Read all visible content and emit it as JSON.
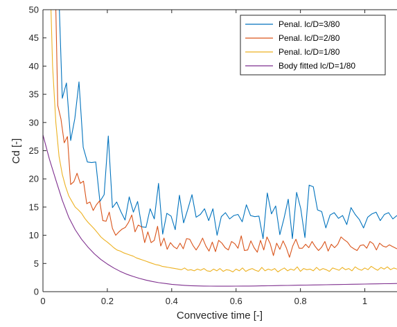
{
  "chart_data": {
    "type": "line",
    "title": "",
    "xlabel": "Convective time [-]",
    "ylabel": "Cd [-]",
    "xlim": [
      0,
      1.1
    ],
    "ylim": [
      0,
      50
    ],
    "xticks": [
      0,
      0.2,
      0.4,
      0.6,
      0.8,
      1
    ],
    "xtick_labels": [
      "0",
      "0.2",
      "0.4",
      "0.6",
      "0.8",
      "1"
    ],
    "yticks": [
      0,
      5,
      10,
      15,
      20,
      25,
      30,
      35,
      40,
      45,
      50
    ],
    "ytick_labels": [
      "0",
      "5",
      "10",
      "15",
      "20",
      "25",
      "30",
      "35",
      "40",
      "45",
      "50"
    ],
    "grid": false,
    "legend_position": "top-right",
    "series": [
      {
        "name": "Penal. lc/D=3/80",
        "color": "#0072BD",
        "x": [
          0.049,
          0.051,
          0.06,
          0.073,
          0.086,
          0.099,
          0.112,
          0.125,
          0.138,
          0.151,
          0.164,
          0.177,
          0.19,
          0.203,
          0.216,
          0.229,
          0.242,
          0.255,
          0.268,
          0.281,
          0.294,
          0.307,
          0.32,
          0.333,
          0.346,
          0.359,
          0.372,
          0.385,
          0.398,
          0.411,
          0.424,
          0.437,
          0.45,
          0.463,
          0.476,
          0.489,
          0.502,
          0.515,
          0.528,
          0.541,
          0.554,
          0.567,
          0.58,
          0.593,
          0.606,
          0.619,
          0.632,
          0.645,
          0.658,
          0.671,
          0.684,
          0.697,
          0.71,
          0.723,
          0.736,
          0.749,
          0.762,
          0.775,
          0.788,
          0.801,
          0.814,
          0.827,
          0.84,
          0.853,
          0.866,
          0.879,
          0.892,
          0.905,
          0.918,
          0.931,
          0.944,
          0.957,
          0.97,
          0.983,
          0.996,
          1.009,
          1.022,
          1.035,
          1.048,
          1.061,
          1.074,
          1.087,
          1.1
        ],
        "values": [
          50,
          50,
          34.3,
          37.0,
          26.8,
          30.7,
          37.2,
          25.6,
          23.0,
          22.9,
          23.0,
          16.0,
          17.2,
          27.6,
          14.9,
          15.9,
          14.2,
          12.7,
          16.8,
          14.1,
          16.0,
          11.5,
          11.4,
          14.7,
          12.9,
          19.2,
          10.2,
          13.9,
          13.4,
          11.0,
          17.1,
          12.2,
          14.6,
          17.2,
          13.2,
          13.7,
          14.7,
          12.6,
          14.7,
          10.0,
          13.3,
          14.0,
          12.9,
          13.5,
          13.7,
          12.4,
          15.4,
          13.5,
          13.3,
          13.4,
          9.4,
          17.5,
          13.8,
          15.2,
          10.1,
          13.0,
          16.4,
          9.4,
          17.6,
          14.7,
          9.6,
          18.9,
          18.6,
          14.5,
          14.2,
          11.3,
          13.6,
          14.0,
          13.0,
          13.5,
          11.9,
          14.9,
          13.7,
          12.8,
          11.3,
          13.2,
          13.8,
          14.1,
          12.6,
          13.7,
          14.0,
          12.9,
          13.5
        ]
      },
      {
        "name": "Penal. lc/D=2/80",
        "color": "#D95319",
        "x": [
          0.04,
          0.046,
          0.056,
          0.066,
          0.076,
          0.086,
          0.096,
          0.106,
          0.116,
          0.126,
          0.136,
          0.146,
          0.156,
          0.166,
          0.176,
          0.186,
          0.196,
          0.206,
          0.216,
          0.226,
          0.236,
          0.246,
          0.256,
          0.266,
          0.276,
          0.286,
          0.296,
          0.306,
          0.316,
          0.326,
          0.336,
          0.346,
          0.356,
          0.366,
          0.376,
          0.386,
          0.396,
          0.406,
          0.416,
          0.426,
          0.436,
          0.446,
          0.456,
          0.466,
          0.476,
          0.486,
          0.496,
          0.506,
          0.516,
          0.526,
          0.536,
          0.546,
          0.556,
          0.566,
          0.576,
          0.586,
          0.596,
          0.606,
          0.616,
          0.626,
          0.636,
          0.646,
          0.656,
          0.666,
          0.676,
          0.686,
          0.696,
          0.706,
          0.716,
          0.726,
          0.736,
          0.746,
          0.756,
          0.766,
          0.776,
          0.786,
          0.796,
          0.806,
          0.816,
          0.826,
          0.836,
          0.846,
          0.856,
          0.866,
          0.876,
          0.886,
          0.896,
          0.906,
          0.916,
          0.926,
          0.936,
          0.946,
          0.956,
          0.966,
          0.976,
          0.986,
          0.996,
          1.006,
          1.016,
          1.026,
          1.036,
          1.046,
          1.056,
          1.066,
          1.076,
          1.086,
          1.1
        ],
        "values": [
          50,
          33.0,
          30.6,
          26.4,
          27.5,
          19.0,
          19.5,
          21.0,
          19.2,
          19.6,
          15.6,
          15.9,
          14.4,
          15.4,
          16.1,
          12.6,
          12.5,
          14.1,
          11.2,
          10.0,
          10.6,
          11.1,
          11.4,
          12.3,
          13.6,
          10.6,
          11.8,
          11.5,
          8.7,
          10.6,
          8.7,
          9.1,
          11.6,
          8.1,
          9.5,
          7.5,
          8.7,
          8.0,
          7.6,
          8.6,
          7.6,
          9.4,
          9.3,
          8.2,
          7.4,
          8.3,
          9.5,
          8.1,
          7.2,
          8.8,
          7.1,
          9.1,
          8.6,
          7.8,
          7.4,
          8.9,
          8.5,
          7.7,
          9.9,
          7.3,
          7.4,
          9.0,
          7.8,
          7.0,
          9.1,
          7.4,
          9.7,
          8.5,
          6.4,
          8.6,
          7.5,
          9.0,
          7.8,
          6.1,
          8.1,
          9.3,
          7.7,
          7.7,
          8.4,
          7.8,
          8.9,
          8.0,
          7.3,
          7.9,
          8.9,
          7.2,
          8.4,
          7.8,
          8.4,
          9.7,
          9.2,
          8.8,
          8.0,
          7.6,
          7.3,
          8.2,
          8.3,
          7.7,
          8.9,
          8.5,
          7.4,
          8.6,
          8.1,
          7.9,
          8.3,
          8.0,
          7.6
        ]
      },
      {
        "name": "Penal. lc/D=1/80",
        "color": "#EDB120",
        "x": [
          0.025,
          0.03,
          0.04,
          0.05,
          0.06,
          0.07,
          0.08,
          0.09,
          0.1,
          0.11,
          0.12,
          0.13,
          0.14,
          0.15,
          0.16,
          0.17,
          0.18,
          0.19,
          0.2,
          0.21,
          0.22,
          0.23,
          0.24,
          0.25,
          0.26,
          0.27,
          0.28,
          0.29,
          0.3,
          0.31,
          0.32,
          0.33,
          0.34,
          0.35,
          0.36,
          0.37,
          0.38,
          0.39,
          0.4,
          0.41,
          0.42,
          0.43,
          0.44,
          0.45,
          0.46,
          0.47,
          0.48,
          0.49,
          0.5,
          0.51,
          0.52,
          0.53,
          0.54,
          0.55,
          0.56,
          0.57,
          0.58,
          0.59,
          0.6,
          0.61,
          0.62,
          0.63,
          0.64,
          0.65,
          0.66,
          0.67,
          0.68,
          0.69,
          0.7,
          0.71,
          0.72,
          0.73,
          0.74,
          0.75,
          0.76,
          0.77,
          0.78,
          0.79,
          0.8,
          0.81,
          0.82,
          0.83,
          0.84,
          0.85,
          0.86,
          0.87,
          0.88,
          0.89,
          0.9,
          0.91,
          0.92,
          0.93,
          0.94,
          0.95,
          0.96,
          0.97,
          0.98,
          0.99,
          1.0,
          1.01,
          1.02,
          1.03,
          1.04,
          1.05,
          1.06,
          1.07,
          1.08,
          1.09,
          1.1
        ],
        "values": [
          50,
          40.0,
          30.0,
          24.0,
          20.8,
          18.7,
          17.0,
          16.0,
          15.0,
          14.5,
          13.9,
          13.0,
          12.3,
          11.7,
          11.1,
          10.4,
          9.7,
          9.2,
          8.8,
          8.3,
          7.8,
          7.4,
          7.2,
          6.9,
          6.7,
          6.5,
          6.3,
          6.0,
          5.8,
          5.6,
          5.4,
          5.2,
          5.0,
          4.8,
          4.7,
          4.5,
          4.4,
          4.3,
          4.2,
          4.1,
          4.0,
          3.9,
          4.2,
          3.8,
          3.9,
          3.7,
          4.0,
          3.8,
          4.1,
          3.7,
          3.6,
          4.0,
          3.7,
          4.1,
          3.6,
          3.9,
          3.8,
          3.5,
          4.0,
          3.7,
          4.2,
          3.6,
          3.9,
          4.1,
          3.8,
          3.6,
          4.3,
          3.7,
          4.0,
          3.8,
          4.1,
          3.5,
          3.9,
          4.2,
          3.7,
          4.0,
          3.8,
          4.4,
          3.6,
          4.1,
          3.9,
          4.0,
          3.7,
          4.3,
          3.8,
          4.1,
          3.9,
          3.6,
          4.2,
          4.0,
          3.8,
          4.3,
          3.9,
          4.1,
          3.7,
          4.4,
          4.0,
          3.8,
          4.2,
          3.9,
          4.5,
          4.1,
          3.8,
          4.3,
          4.0,
          4.4,
          3.9,
          4.2,
          4.0
        ]
      },
      {
        "name": "Body fitted lc/D=1/80",
        "color": "#7E2F8E",
        "x": [
          0,
          0.02,
          0.04,
          0.06,
          0.08,
          0.1,
          0.12,
          0.14,
          0.16,
          0.18,
          0.2,
          0.22,
          0.24,
          0.26,
          0.28,
          0.3,
          0.32,
          0.34,
          0.36,
          0.38,
          0.4,
          0.42,
          0.44,
          0.46,
          0.48,
          0.5,
          0.52,
          0.54,
          0.56,
          0.58,
          0.6,
          0.62,
          0.64,
          0.66,
          0.68,
          0.7,
          0.72,
          0.74,
          0.76,
          0.78,
          0.8,
          0.82,
          0.84,
          0.86,
          0.88,
          0.9,
          0.92,
          0.94,
          0.96,
          0.98,
          1.0,
          1.02,
          1.04,
          1.06,
          1.08,
          1.1
        ],
        "values": [
          27.8,
          23.5,
          19.8,
          16.2,
          13.2,
          11.0,
          9.3,
          7.9,
          6.7,
          5.7,
          4.9,
          4.2,
          3.6,
          3.1,
          2.7,
          2.35,
          2.05,
          1.8,
          1.6,
          1.45,
          1.3,
          1.2,
          1.12,
          1.06,
          1.02,
          1.0,
          0.98,
          0.97,
          0.97,
          0.97,
          0.98,
          0.99,
          1.0,
          1.01,
          1.03,
          1.05,
          1.07,
          1.09,
          1.11,
          1.13,
          1.15,
          1.17,
          1.19,
          1.21,
          1.23,
          1.25,
          1.27,
          1.29,
          1.31,
          1.33,
          1.35,
          1.37,
          1.39,
          1.41,
          1.43,
          1.45
        ]
      }
    ]
  }
}
